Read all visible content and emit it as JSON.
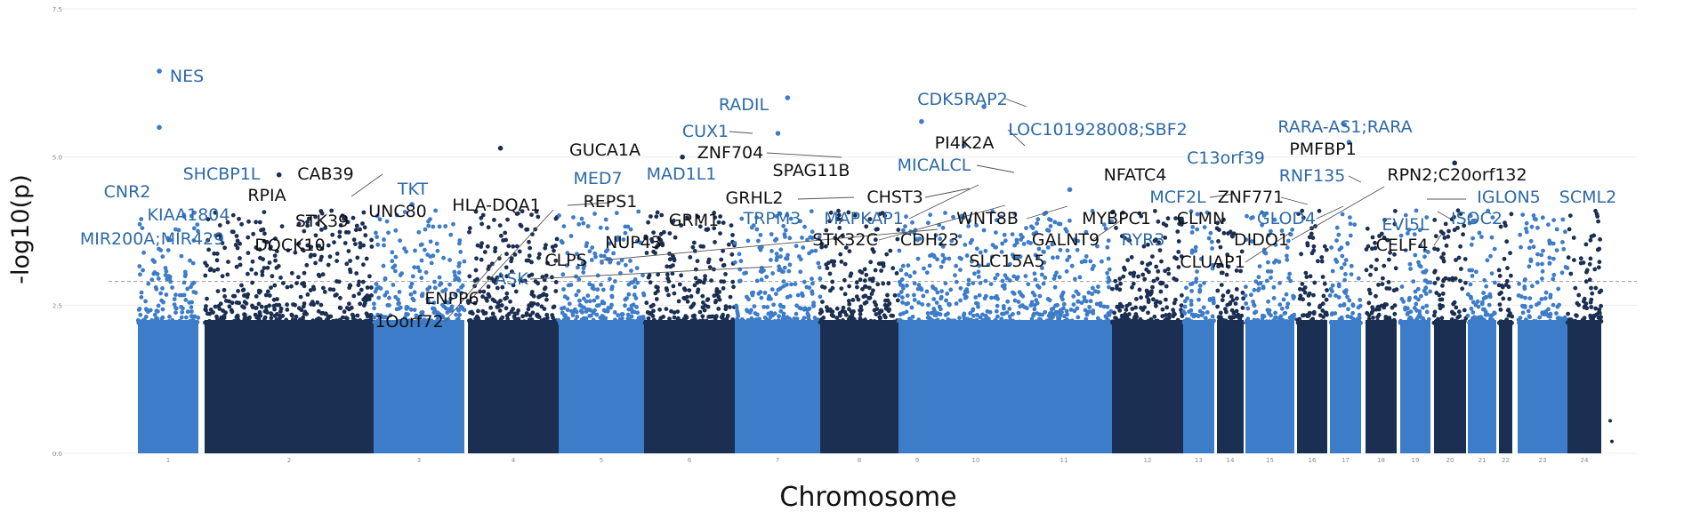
{
  "chart_data": {
    "type": "scatter",
    "subtype": "manhattan",
    "title": "",
    "xlabel": "Chromosome",
    "ylabel": "-log10(p)",
    "ylim": [
      0,
      7.5
    ],
    "yticks": [
      "0.0",
      "2.5",
      "5.0",
      "7.5"
    ],
    "threshold": 2.9,
    "chromosomes": [
      "1",
      "2",
      "3",
      "4",
      "5",
      "6",
      "7",
      "8",
      "9",
      "10",
      "11",
      "12",
      "13",
      "14",
      "15",
      "16",
      "17",
      "18",
      "19",
      "20",
      "21",
      "22",
      "23",
      "24"
    ],
    "colors": {
      "light": "#3d7cc9",
      "dark": "#1b2f52",
      "label_blue": "#2e6aa6",
      "label_black": "#111111",
      "grid": "#ececec",
      "threshold": "#9a9a9a"
    },
    "peaks": [
      {
        "chr": 1,
        "y": 6.45
      },
      {
        "chr": 1,
        "y": 5.5
      },
      {
        "chr": 2,
        "y": 4.7
      },
      {
        "chr": 3,
        "y": 4.2
      },
      {
        "chr": 4,
        "y": 5.15
      },
      {
        "chr": 6,
        "y": 5.0
      },
      {
        "chr": 7,
        "y": 6.0
      },
      {
        "chr": 7,
        "y": 5.4
      },
      {
        "chr": 9,
        "y": 5.6
      },
      {
        "chr": 10,
        "y": 5.85
      },
      {
        "chr": 10,
        "y": 5.2
      },
      {
        "chr": 11,
        "y": 4.45
      },
      {
        "chr": 17,
        "y": 5.55
      },
      {
        "chr": 17,
        "y": 5.25
      },
      {
        "chr": 20,
        "y": 4.9
      }
    ],
    "annotations": [
      {
        "gene": "NES",
        "color": "blue",
        "chr": 1,
        "y": 6.45
      },
      {
        "gene": "CNR2",
        "color": "blue",
        "chr": 1,
        "y": 4.55
      },
      {
        "gene": "SHCBP1L",
        "color": "blue",
        "chr": 1,
        "y": 4.6
      },
      {
        "gene": "KIAA1804",
        "color": "blue",
        "chr": 1,
        "y": 4.0
      },
      {
        "gene": "MIR200A;MIR429",
        "color": "blue",
        "chr": 1,
        "y": 3.6
      },
      {
        "gene": "RPIA",
        "color": "black",
        "chr": 2,
        "y": 4.1
      },
      {
        "gene": "CAB39",
        "color": "black",
        "chr": 2,
        "y": 4.7
      },
      {
        "gene": "STK39",
        "color": "black",
        "chr": 2,
        "y": 4.0
      },
      {
        "gene": "DOCK10",
        "color": "black",
        "chr": 2,
        "y": 3.55
      },
      {
        "gene": "TKT",
        "color": "blue",
        "chr": 3,
        "y": 4.35
      },
      {
        "gene": "UNC80",
        "color": "black",
        "chr": 2,
        "y": 4.0
      },
      {
        "gene": "1Oorf72",
        "color": "black",
        "chr": 3,
        "y": 2.3
      },
      {
        "gene": "HLA-DQA1",
        "color": "black",
        "chr": 6,
        "y": 4.15
      },
      {
        "gene": "ENPP6",
        "color": "black",
        "chr": 4,
        "y": 3.2
      },
      {
        "gene": "ASK",
        "color": "blue",
        "chr": 5,
        "y": 3.35
      },
      {
        "gene": "CLPS",
        "color": "black",
        "chr": 6,
        "y": 3.1
      },
      {
        "gene": "NUP43",
        "color": "black",
        "chr": 6,
        "y": 3.6
      },
      {
        "gene": "GUCA1A",
        "color": "black",
        "chr": 6,
        "y": 4.9
      },
      {
        "gene": "REPS1",
        "color": "black",
        "chr": 6,
        "y": 4.3
      },
      {
        "gene": "MED7",
        "color": "blue",
        "chr": 5,
        "y": 4.6
      },
      {
        "gene": "MAD1L1",
        "color": "blue",
        "chr": 7,
        "y": 4.6
      },
      {
        "gene": "GRM1",
        "color": "black",
        "chr": 6,
        "y": 3.85
      },
      {
        "gene": "CUX1",
        "color": "blue",
        "chr": 7,
        "y": 5.4
      },
      {
        "gene": "RADIL",
        "color": "blue",
        "chr": 7,
        "y": 5.7
      },
      {
        "gene": "ZNF704",
        "color": "black",
        "chr": 8,
        "y": 4.95
      },
      {
        "gene": "SPAG11B",
        "color": "black",
        "chr": 8,
        "y": 4.9
      },
      {
        "gene": "GRHL2",
        "color": "black",
        "chr": 8,
        "y": 4.25
      },
      {
        "gene": "TRPM3",
        "color": "blue",
        "chr": 9,
        "y": 3.5
      },
      {
        "gene": "MAPKAP1",
        "color": "blue",
        "chr": 9,
        "y": 3.75
      },
      {
        "gene": "STK32C",
        "color": "black",
        "chr": 10,
        "y": 3.6
      },
      {
        "gene": "CHST3",
        "color": "black",
        "chr": 10,
        "y": 4.35
      },
      {
        "gene": "CDK5RAP2",
        "color": "blue",
        "chr": 9,
        "y": 5.85
      },
      {
        "gene": "PI4K2A",
        "color": "black",
        "chr": 10,
        "y": 5.15
      },
      {
        "gene": "MICALCL",
        "color": "blue",
        "chr": 11,
        "y": 4.75
      },
      {
        "gene": "LOC101928008;SBF2",
        "color": "blue",
        "chr": 11,
        "y": 5.2
      },
      {
        "gene": "CDH23",
        "color": "black",
        "chr": 10,
        "y": 3.95
      },
      {
        "gene": "WNT8B",
        "color": "black",
        "chr": 10,
        "y": 4.15
      },
      {
        "gene": "SLC15A5",
        "color": "black",
        "chr": 12,
        "y": 3.45
      },
      {
        "gene": "GALNT9",
        "color": "black",
        "chr": 12,
        "y": 4.05
      },
      {
        "gene": "MYBPC1",
        "color": "black",
        "chr": 12,
        "y": 3.9
      },
      {
        "gene": "RYR3",
        "color": "blue",
        "chr": 15,
        "y": 3.55
      },
      {
        "gene": "NFATC4",
        "color": "black",
        "chr": 14,
        "y": 4.5
      },
      {
        "gene": "C13orf39",
        "color": "blue",
        "chr": 13,
        "y": 4.8
      },
      {
        "gene": "MCF2L",
        "color": "blue",
        "chr": 13,
        "y": 4.3
      },
      {
        "gene": "CLMN",
        "color": "black",
        "chr": 14,
        "y": 3.75
      },
      {
        "gene": "CLUAP1",
        "color": "black",
        "chr": 16,
        "y": 3.35
      },
      {
        "gene": "ZNF771",
        "color": "black",
        "chr": 16,
        "y": 4.3
      },
      {
        "gene": "PMFBP1",
        "color": "black",
        "chr": 16,
        "y": 4.75
      },
      {
        "gene": "RARA-AS1;RARA",
        "color": "blue",
        "chr": 17,
        "y": 5.25
      },
      {
        "gene": "RNF135",
        "color": "blue",
        "chr": 17,
        "y": 4.6
      },
      {
        "gene": "GLOD4",
        "color": "blue",
        "chr": 17,
        "y": 4.0
      },
      {
        "gene": "DIDO1",
        "color": "black",
        "chr": 20,
        "y": 4.85
      },
      {
        "gene": "RPN2;C20orf132",
        "color": "black",
        "chr": 20,
        "y": 4.9
      },
      {
        "gene": "EVI5L",
        "color": "blue",
        "chr": 19,
        "y": 3.95
      },
      {
        "gene": "CELF4",
        "color": "black",
        "chr": 18,
        "y": 3.6
      },
      {
        "gene": "IGLON5",
        "color": "blue",
        "chr": 19,
        "y": 4.3
      },
      {
        "gene": "SCML2",
        "color": "blue",
        "chr": 23,
        "y": 4.1
      },
      {
        "gene": "ISOC2",
        "color": "blue",
        "chr": 19,
        "y": 4.05
      }
    ]
  }
}
